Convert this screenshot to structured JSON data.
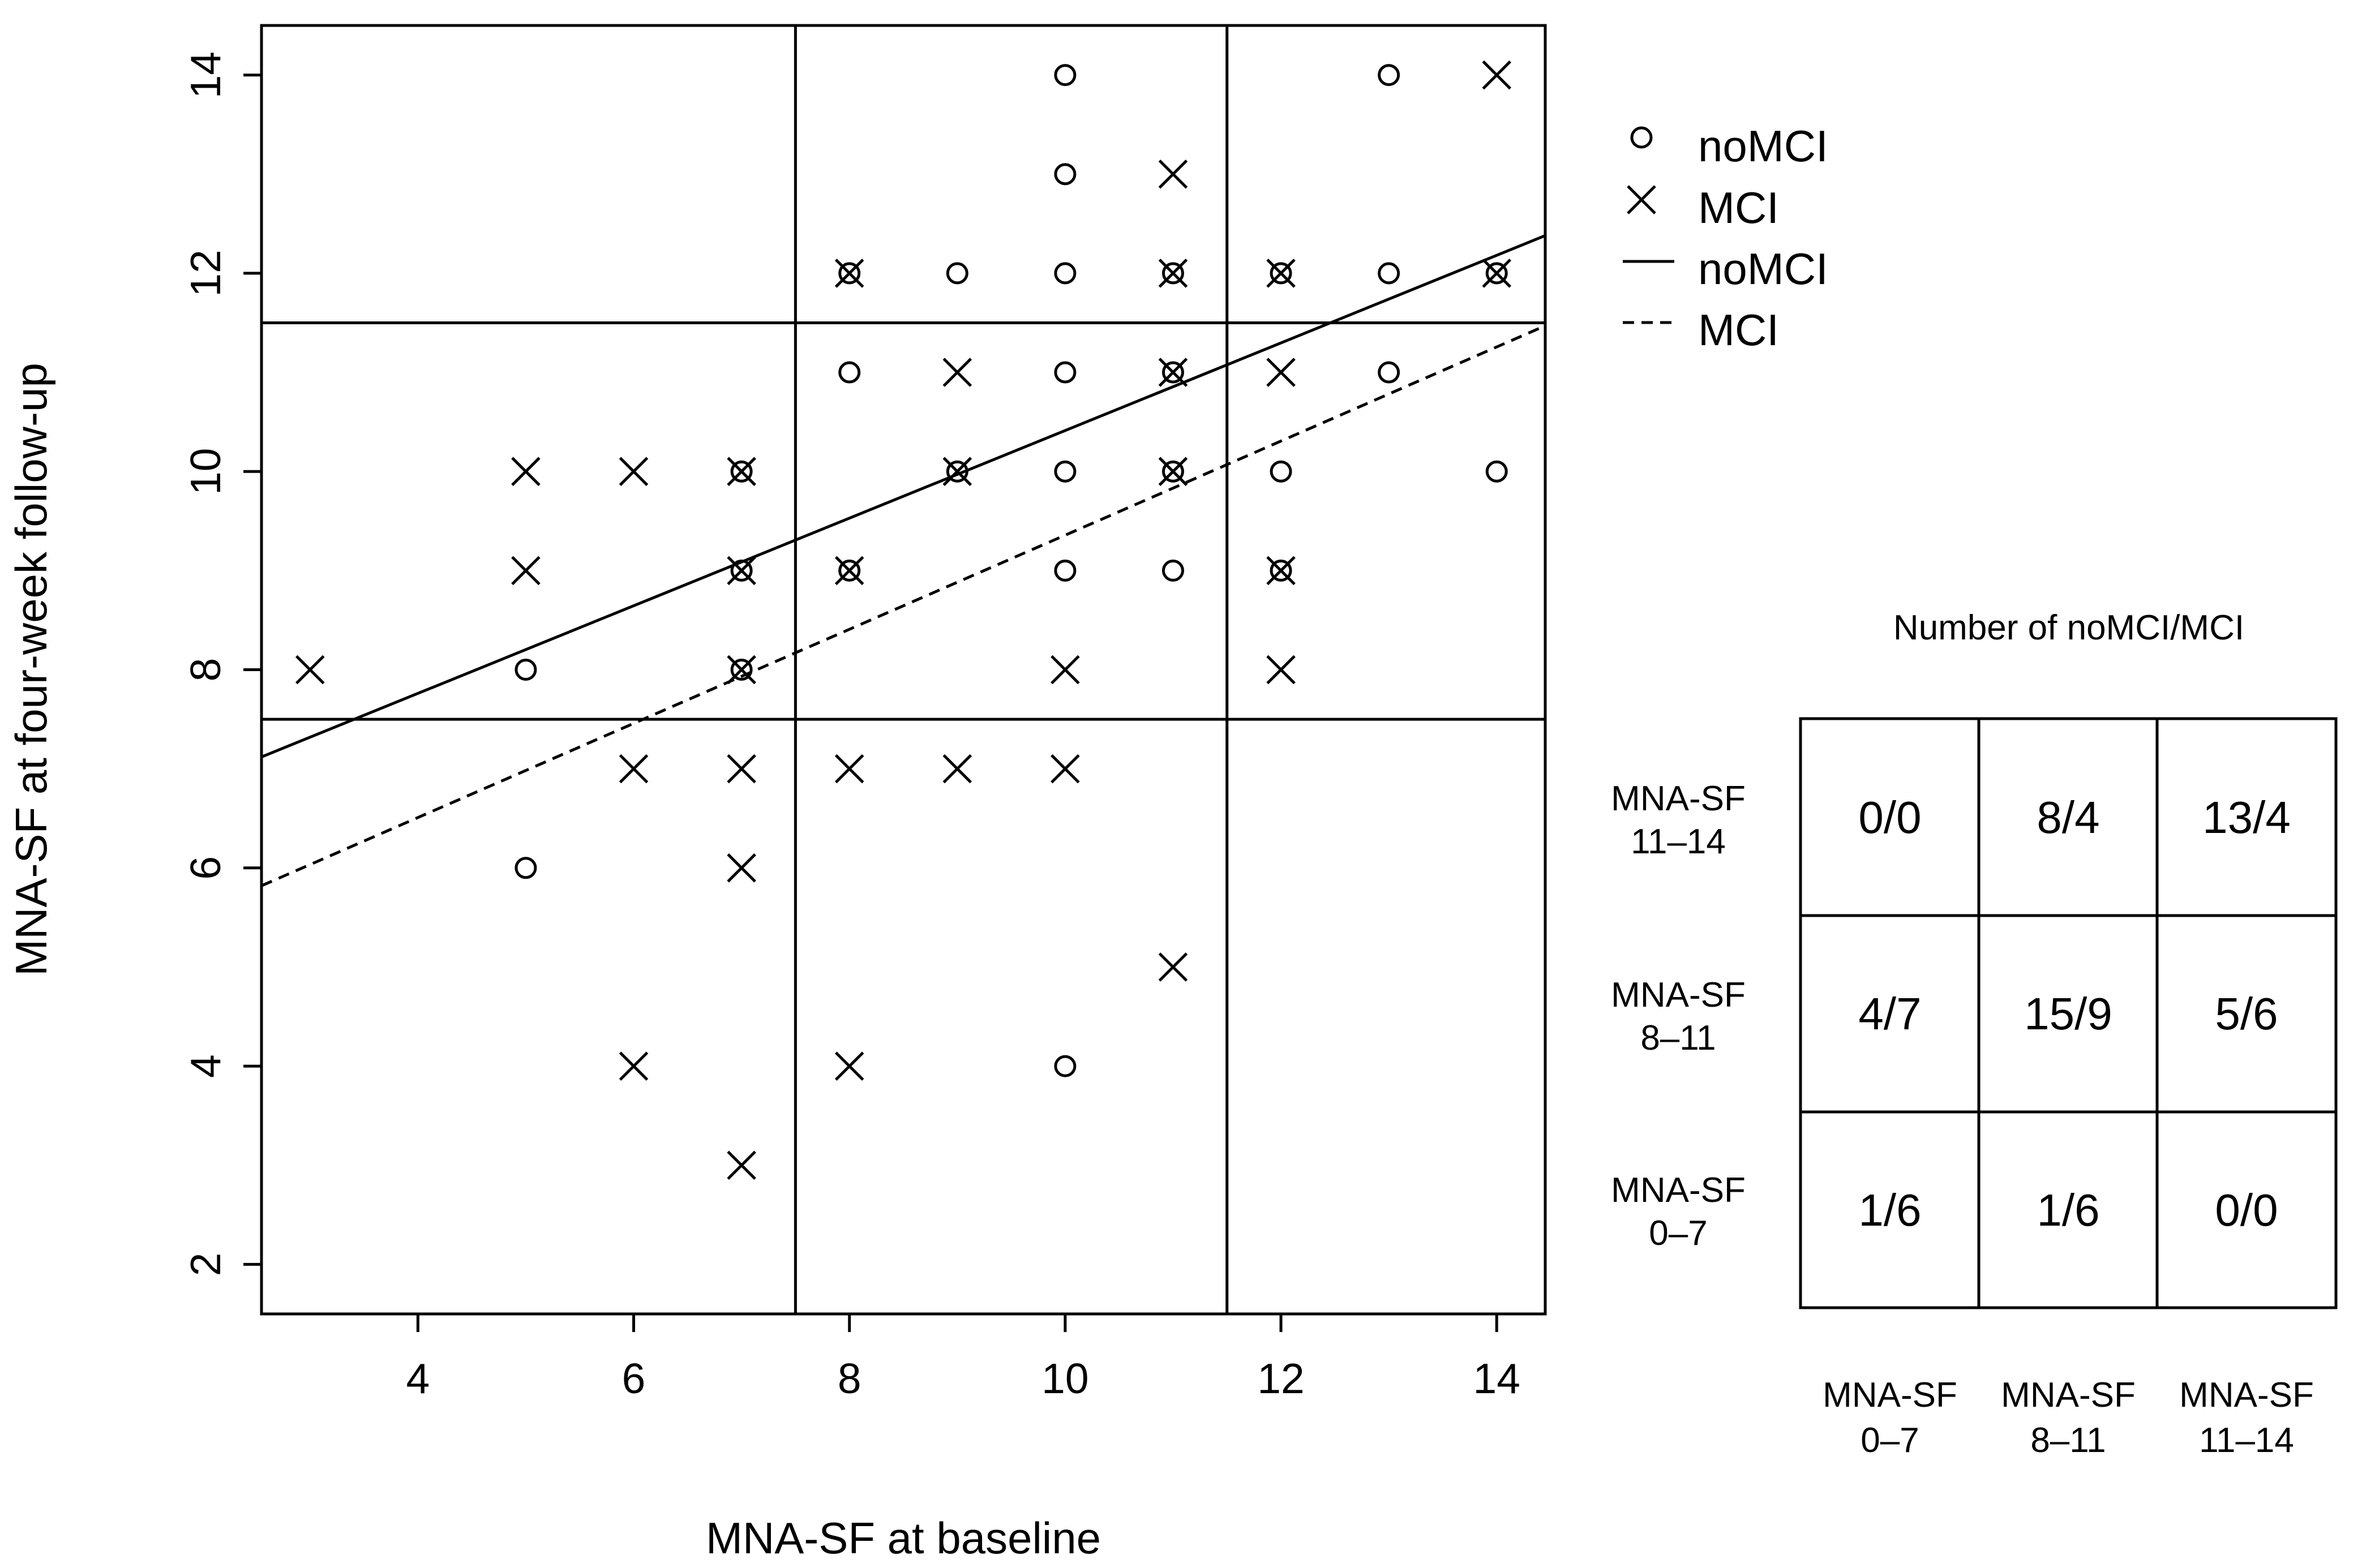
{
  "chart_data": {
    "type": "scatter",
    "xlabel": "MNA-SF at baseline",
    "ylabel": "MNA-SF at four-week follow-up",
    "xlim": [
      2.55,
      14.45
    ],
    "ylim": [
      1.5,
      14.5
    ],
    "xticks": [
      4,
      6,
      8,
      10,
      12,
      14
    ],
    "yticks": [
      2,
      4,
      6,
      8,
      10,
      12,
      14
    ],
    "grid": false,
    "cutoff_lines": {
      "x": [
        7.5,
        11.5
      ],
      "y": [
        7.5,
        11.5
      ]
    },
    "series": [
      {
        "name": "noMCI",
        "marker": "circle",
        "points": [
          [
            5,
            8
          ],
          [
            5,
            6
          ],
          [
            7,
            10
          ],
          [
            7,
            9
          ],
          [
            7,
            8
          ],
          [
            8,
            12
          ],
          [
            8,
            11
          ],
          [
            8,
            9
          ],
          [
            9,
            12
          ],
          [
            9,
            10
          ],
          [
            10,
            14
          ],
          [
            10,
            13
          ],
          [
            10,
            12
          ],
          [
            10,
            11
          ],
          [
            10,
            10
          ],
          [
            10,
            9
          ],
          [
            10,
            4
          ],
          [
            11,
            12
          ],
          [
            11,
            11
          ],
          [
            11,
            10
          ],
          [
            11,
            9
          ],
          [
            12,
            12
          ],
          [
            12,
            10
          ],
          [
            12,
            9
          ],
          [
            13,
            14
          ],
          [
            13,
            12
          ],
          [
            13,
            11
          ],
          [
            14,
            12
          ],
          [
            14,
            10
          ]
        ]
      },
      {
        "name": "MCI",
        "marker": "cross",
        "points": [
          [
            3,
            8
          ],
          [
            5,
            10
          ],
          [
            5,
            9
          ],
          [
            6,
            10
          ],
          [
            6,
            7
          ],
          [
            6,
            4
          ],
          [
            7,
            10
          ],
          [
            7,
            9
          ],
          [
            7,
            8
          ],
          [
            7,
            7
          ],
          [
            7,
            6
          ],
          [
            7,
            3
          ],
          [
            8,
            12
          ],
          [
            8,
            9
          ],
          [
            8,
            7
          ],
          [
            8,
            4
          ],
          [
            9,
            11
          ],
          [
            9,
            10
          ],
          [
            9,
            7
          ],
          [
            10,
            8
          ],
          [
            10,
            7
          ],
          [
            11,
            13
          ],
          [
            11,
            12
          ],
          [
            11,
            11
          ],
          [
            11,
            10
          ],
          [
            11,
            5
          ],
          [
            12,
            12
          ],
          [
            12,
            11
          ],
          [
            12,
            9
          ],
          [
            12,
            8
          ],
          [
            14,
            14
          ],
          [
            14,
            12
          ]
        ]
      }
    ],
    "fit_lines": [
      {
        "name": "noMCI",
        "style": "solid",
        "x": [
          2.55,
          14.45
        ],
        "y": [
          7.12,
          12.38
        ]
      },
      {
        "name": "MCI",
        "style": "dashed",
        "x": [
          2.55,
          14.45
        ],
        "y": [
          5.82,
          11.47
        ]
      }
    ],
    "legend": {
      "position": "top-right",
      "entries": [
        {
          "label": "noMCI",
          "symbol": "circle"
        },
        {
          "label": "MCI",
          "symbol": "cross"
        },
        {
          "label": "noMCI",
          "symbol": "solid-line"
        },
        {
          "label": "MCI",
          "symbol": "dashed-line"
        }
      ]
    },
    "count_table": {
      "title": "Number of noMCI/MCI",
      "row_labels": [
        {
          "line1": "MNA-SF",
          "line2": "11–14"
        },
        {
          "line1": "MNA-SF",
          "line2": "8–11"
        },
        {
          "line1": "MNA-SF",
          "line2": "0–7"
        }
      ],
      "col_labels": [
        {
          "line1": "MNA-SF",
          "line2": "0–7"
        },
        {
          "line1": "MNA-SF",
          "line2": "8–11"
        },
        {
          "line1": "MNA-SF",
          "line2": "11–14"
        }
      ],
      "cells": [
        [
          "0/0",
          "8/4",
          "13/4"
        ],
        [
          "4/7",
          "15/9",
          "5/6"
        ],
        [
          "1/6",
          "1/6",
          "0/0"
        ]
      ]
    }
  }
}
